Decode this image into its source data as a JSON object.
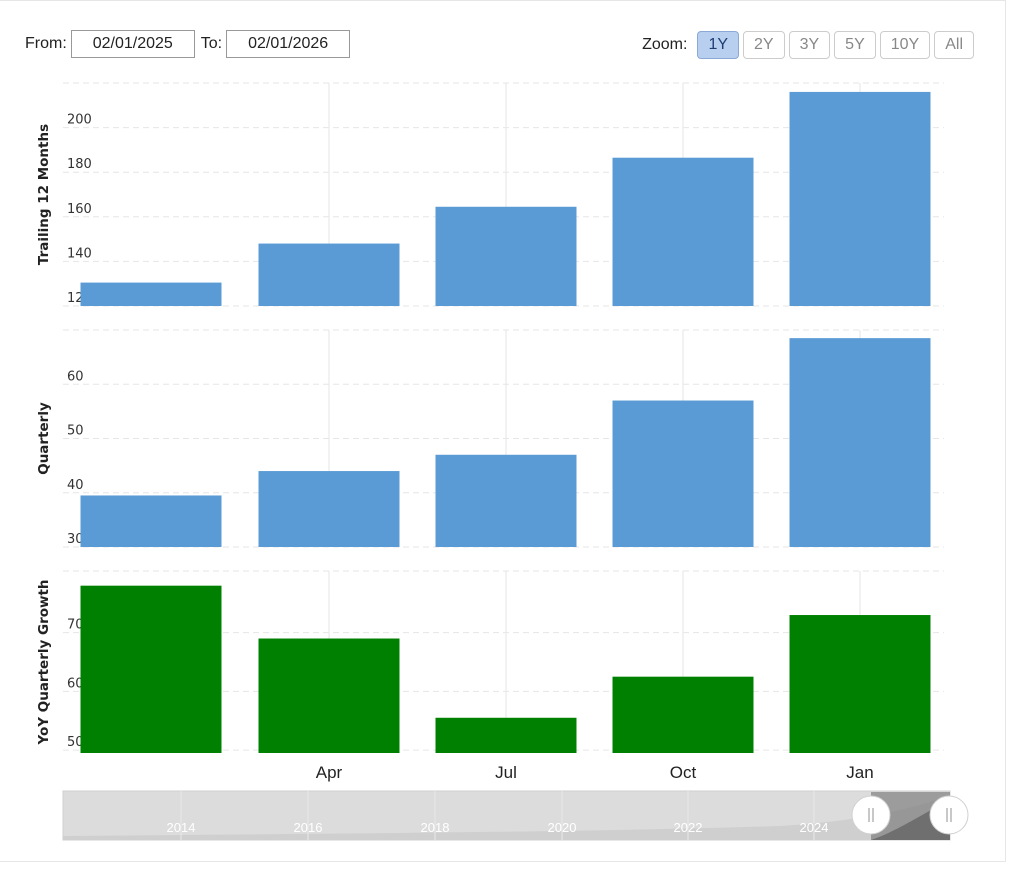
{
  "range": {
    "from_label": "From:",
    "from_value": "02/01/2025",
    "to_label": "To:",
    "to_value": "02/01/2026"
  },
  "zoom": {
    "label": "Zoom:",
    "options": [
      "1Y",
      "2Y",
      "3Y",
      "5Y",
      "10Y",
      "All"
    ],
    "selected": "1Y"
  },
  "colors": {
    "blue": "#5b9bd5",
    "green": "#008000",
    "grid": "#e6e6e6",
    "selected_zoom": "#b8cff0"
  },
  "chart_data": [
    {
      "type": "bar",
      "ylabel": "Trailing 12 Months",
      "categories": [
        "",
        "Apr",
        "Jul",
        "Oct",
        "Jan"
      ],
      "values": [
        130.5,
        148,
        164.5,
        186.5,
        216
      ],
      "ylim": [
        120,
        220
      ],
      "yticks": [
        120,
        140,
        160,
        180,
        200
      ],
      "color": "#5b9bd5"
    },
    {
      "type": "bar",
      "ylabel": "Quarterly",
      "categories": [
        "",
        "Apr",
        "Jul",
        "Oct",
        "Jan"
      ],
      "values": [
        39.5,
        44,
        47,
        57,
        68.5
      ],
      "ylim": [
        30,
        70
      ],
      "yticks": [
        30,
        40,
        50,
        60
      ],
      "color": "#5b9bd5"
    },
    {
      "type": "bar",
      "ylabel": "YoY Quarterly Growth",
      "categories": [
        "",
        "Apr",
        "Jul",
        "Oct",
        "Jan"
      ],
      "values": [
        78,
        69,
        55.5,
        62.5,
        73
      ],
      "ylim": [
        49.5,
        80.5
      ],
      "yticks": [
        50,
        60,
        70
      ],
      "color": "#008000"
    }
  ],
  "x_axis": {
    "tick_labels": [
      "Apr",
      "Jul",
      "Oct",
      "Jan"
    ]
  },
  "navigator": {
    "year_labels": [
      "2014",
      "2016",
      "2018",
      "2020",
      "2022",
      "2024"
    ]
  }
}
